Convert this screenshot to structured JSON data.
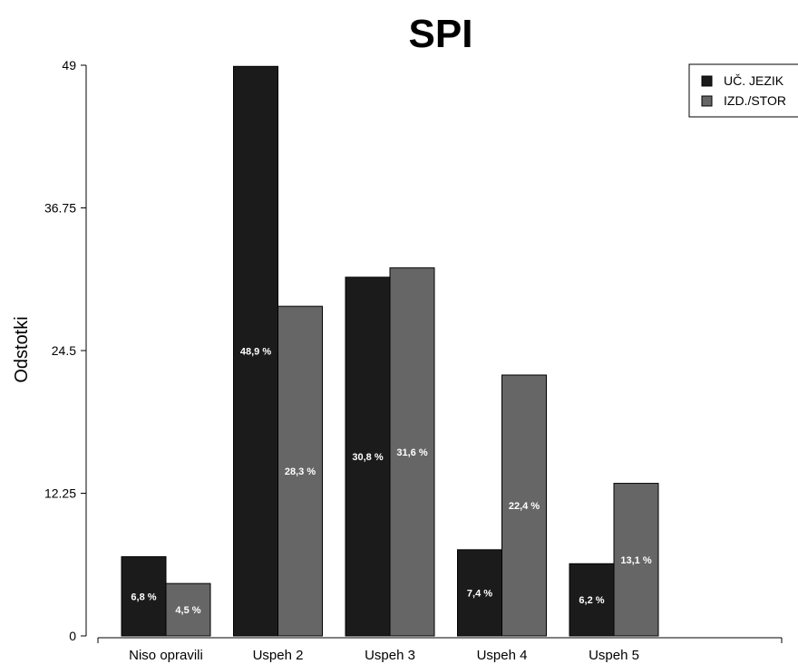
{
  "chart_data": {
    "type": "bar",
    "title": "SPI",
    "ylabel": "Odstotki",
    "xlabel": "",
    "ylim": [
      0,
      49
    ],
    "yticks": [
      "0",
      "12.25",
      "24.5",
      "36.75",
      "49"
    ],
    "categories": [
      "Niso opravili",
      "Uspeh 2",
      "Uspeh 3",
      "Uspeh 4",
      "Uspeh 5"
    ],
    "legend_position": "top-right",
    "grid": false,
    "series": [
      {
        "name": "UČ. JEZIK",
        "color": "#1b1b1b",
        "values": [
          6.8,
          48.9,
          30.8,
          7.4,
          6.2
        ],
        "labels": [
          "6,8 %",
          "48,9 %",
          "30,8 %",
          "7,4 %",
          "6,2 %"
        ]
      },
      {
        "name": "IZD./STOR",
        "color": "#666666",
        "values": [
          4.5,
          28.3,
          31.6,
          22.4,
          13.1
        ],
        "labels": [
          "4,5 %",
          "28,3 %",
          "31,6 %",
          "22,4 %",
          "13,1 %"
        ]
      }
    ]
  }
}
